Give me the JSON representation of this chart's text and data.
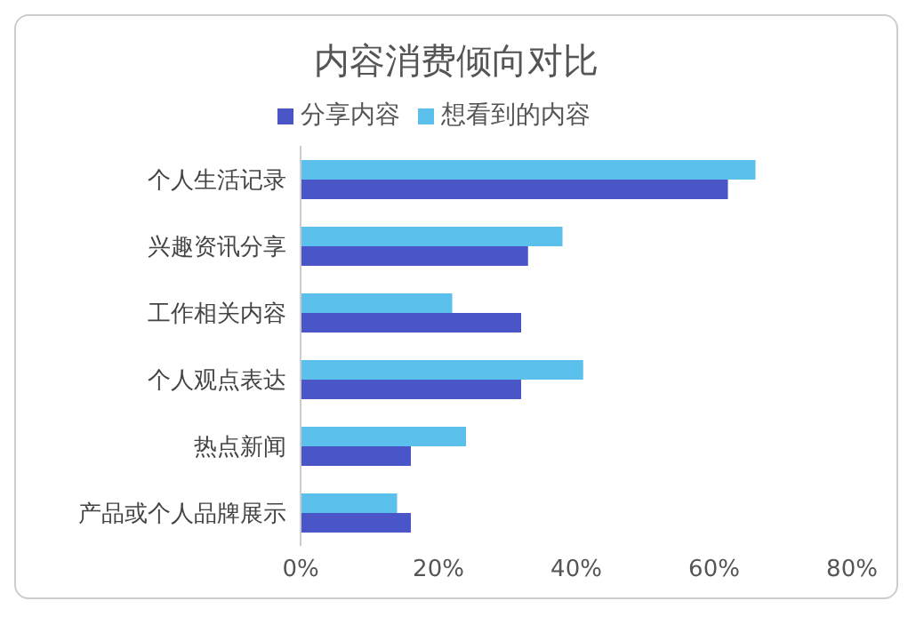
{
  "chart_data": {
    "type": "bar",
    "orientation": "horizontal",
    "title": "内容消费倾向对比",
    "categories": [
      "个人生活记录",
      "兴趣资讯分享",
      "工作相关内容",
      "个人观点表达",
      "热点新闻",
      "产品或个人品牌展示"
    ],
    "series": [
      {
        "name": "想看到的内容",
        "color": "#5bc0eb",
        "values": [
          66,
          38,
          22,
          41,
          24,
          14
        ]
      },
      {
        "name": "分享内容",
        "color": "#4a56c8",
        "values": [
          62,
          33,
          32,
          32,
          16,
          16
        ]
      }
    ],
    "xlim": [
      0,
      80
    ],
    "xticks": [
      {
        "value": 0,
        "label": "0%"
      },
      {
        "value": 20,
        "label": "20%"
      },
      {
        "value": 40,
        "label": "40%"
      },
      {
        "value": 60,
        "label": "60%"
      },
      {
        "value": 80,
        "label": "80%"
      }
    ],
    "grid": false,
    "legend": "top"
  }
}
